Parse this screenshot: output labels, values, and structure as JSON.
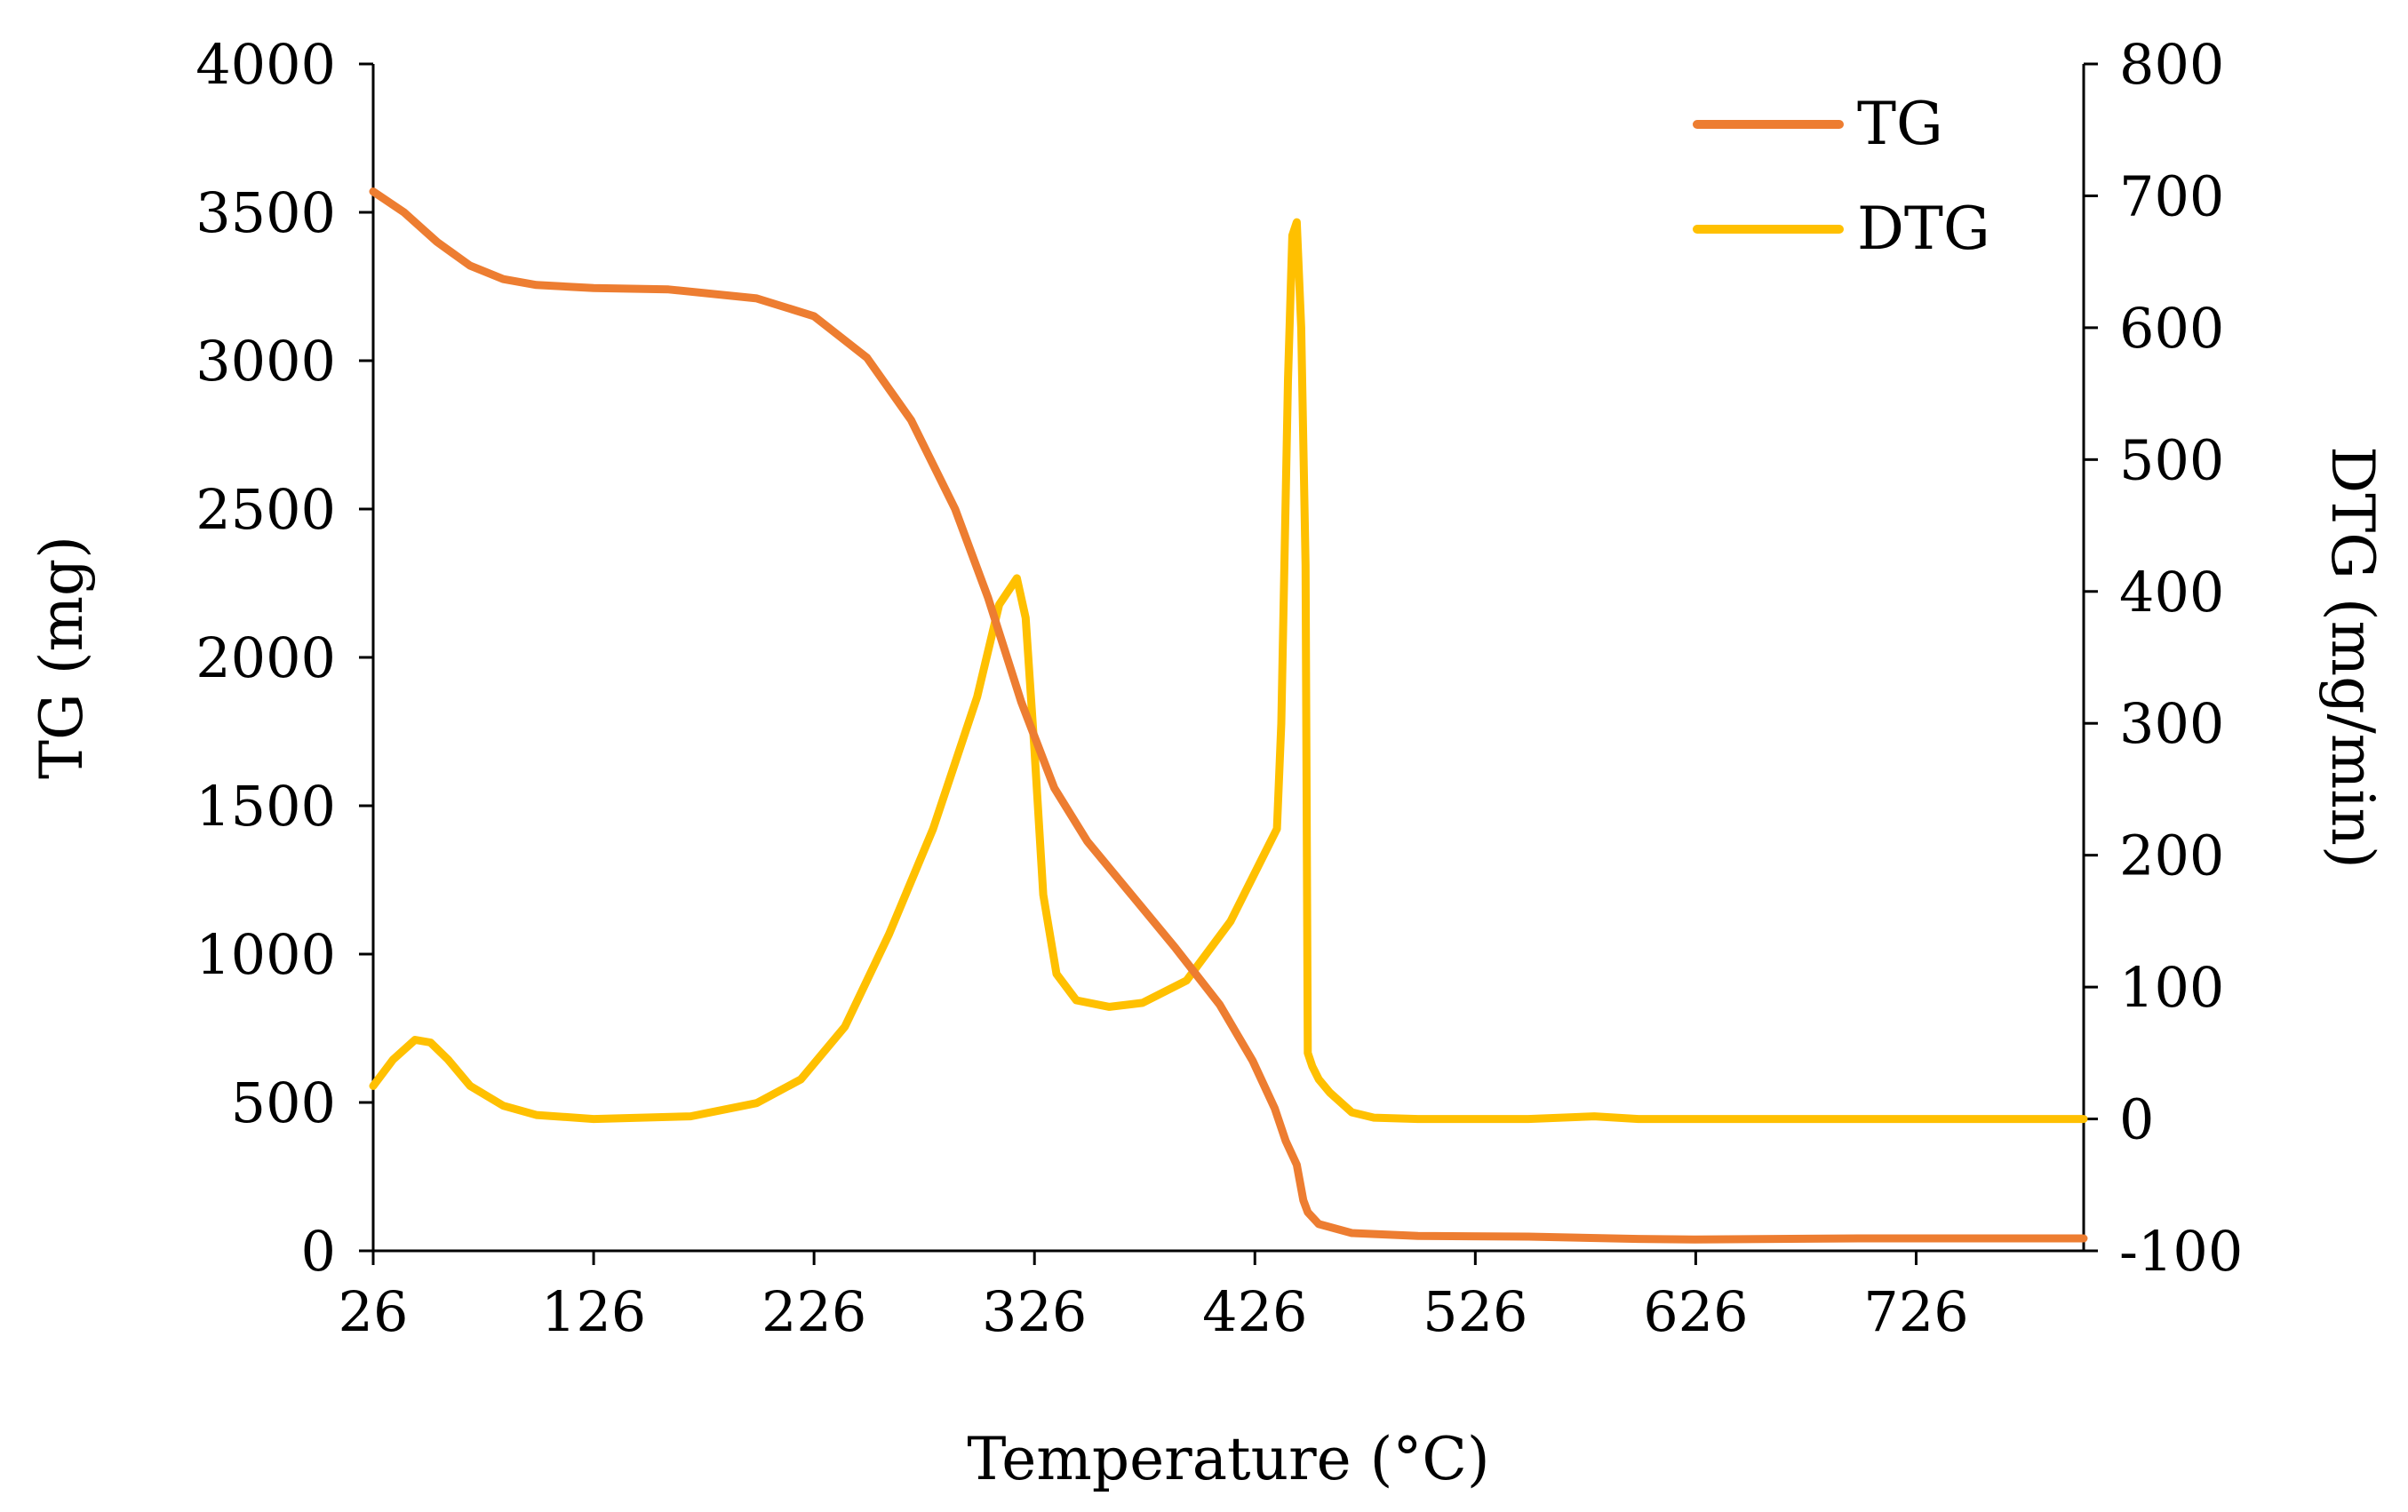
{
  "chart_data": {
    "type": "line",
    "title": "",
    "xlabel": "Temperature (°C)",
    "ylabel_left": "TG (mg)",
    "ylabel_right": "DTG (mg/min)",
    "xlim": [
      26,
      802
    ],
    "x_ticks": [
      26,
      126,
      226,
      326,
      426,
      526,
      626,
      726
    ],
    "ylim_left": [
      0,
      4000
    ],
    "y_left_ticks": [
      0,
      500,
      1000,
      1500,
      2000,
      2500,
      3000,
      3500,
      4000
    ],
    "ylim_right": [
      -100,
      800
    ],
    "y_right_ticks": [
      -100,
      0,
      100,
      200,
      300,
      400,
      500,
      600,
      700,
      800
    ],
    "grid": false,
    "legend_position": "top-right",
    "series": [
      {
        "name": "TG",
        "axis": "left",
        "color": "#ED7D31",
        "x": [
          26,
          40,
          55,
          70,
          85,
          100,
          126,
          160,
          200,
          226,
          250,
          270,
          290,
          305,
          320,
          335,
          350,
          370,
          390,
          410,
          425,
          435,
          440,
          445,
          448,
          450,
          455,
          470,
          500,
          550,
          600,
          626,
          700,
          802
        ],
        "y": [
          3570,
          3500,
          3400,
          3320,
          3275,
          3255,
          3245,
          3240,
          3210,
          3150,
          3010,
          2800,
          2500,
          2200,
          1850,
          1560,
          1380,
          1200,
          1020,
          830,
          640,
          480,
          370,
          290,
          170,
          130,
          90,
          60,
          50,
          48,
          40,
          38,
          42,
          42
        ]
      },
      {
        "name": "DTG",
        "axis": "right",
        "color": "#FFC000",
        "x": [
          26,
          35,
          45,
          52,
          60,
          70,
          85,
          100,
          126,
          170,
          200,
          220,
          240,
          260,
          280,
          300,
          310,
          318,
          322,
          326,
          330,
          336,
          345,
          360,
          375,
          395,
          415,
          430,
          436,
          438,
          441,
          443,
          445,
          447,
          449,
          450,
          452,
          455,
          460,
          470,
          480,
          500,
          550,
          580,
          600,
          700,
          802
        ],
        "y": [
          25,
          45,
          60,
          58,
          45,
          25,
          10,
          3,
          0,
          2,
          12,
          30,
          70,
          140,
          220,
          320,
          390,
          410,
          380,
          280,
          170,
          110,
          90,
          85,
          88,
          105,
          150,
          200,
          220,
          300,
          560,
          670,
          680,
          600,
          420,
          50,
          40,
          30,
          20,
          5,
          1,
          0,
          0,
          2,
          0,
          0,
          0
        ]
      }
    ]
  }
}
